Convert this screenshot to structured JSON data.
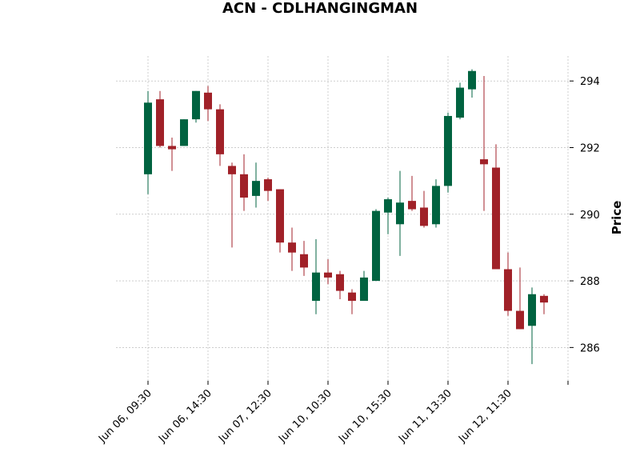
{
  "chart_data": {
    "type": "candlestick",
    "title": "ACN - CDLHANGINGMAN",
    "xlabel": "",
    "ylabel": "Price",
    "ylim": [
      285.0,
      294.75
    ],
    "yticks": [
      286,
      288,
      290,
      292,
      294
    ],
    "grid": true,
    "colors": {
      "up": "#006340",
      "down": "#a02128",
      "grid": "#b0b0b0"
    },
    "xtick_labels": [
      {
        "index": 0,
        "label": "Jun 06, 09:30"
      },
      {
        "index": 5,
        "label": "Jun 06, 14:30"
      },
      {
        "index": 10,
        "label": "Jun 07, 12:30"
      },
      {
        "index": 15,
        "label": "Jun 10, 10:30"
      },
      {
        "index": 20,
        "label": "Jun 10, 15:30"
      },
      {
        "index": 25,
        "label": "Jun 11, 13:30"
      },
      {
        "index": 30,
        "label": "Jun 12, 11:30"
      },
      {
        "index": 35,
        "label": ""
      }
    ],
    "candles": [
      {
        "o": 291.2,
        "h": 293.7,
        "l": 290.6,
        "c": 293.35
      },
      {
        "o": 293.45,
        "h": 293.7,
        "l": 292.0,
        "c": 292.05
      },
      {
        "o": 292.05,
        "h": 292.3,
        "l": 291.3,
        "c": 291.95
      },
      {
        "o": 292.05,
        "h": 292.85,
        "l": 292.05,
        "c": 292.85
      },
      {
        "o": 292.85,
        "h": 293.7,
        "l": 292.75,
        "c": 293.7
      },
      {
        "o": 293.65,
        "h": 293.85,
        "l": 292.8,
        "c": 293.15
      },
      {
        "o": 293.15,
        "h": 293.3,
        "l": 291.45,
        "c": 291.8
      },
      {
        "o": 291.45,
        "h": 291.55,
        "l": 289.0,
        "c": 291.2
      },
      {
        "o": 291.2,
        "h": 291.8,
        "l": 290.1,
        "c": 290.5
      },
      {
        "o": 290.55,
        "h": 291.55,
        "l": 290.2,
        "c": 291.0
      },
      {
        "o": 291.05,
        "h": 291.1,
        "l": 290.4,
        "c": 290.7
      },
      {
        "o": 290.75,
        "h": 290.75,
        "l": 288.85,
        "c": 289.15
      },
      {
        "o": 289.15,
        "h": 289.6,
        "l": 288.3,
        "c": 288.85
      },
      {
        "o": 288.8,
        "h": 289.2,
        "l": 288.15,
        "c": 288.4
      },
      {
        "o": 287.4,
        "h": 289.25,
        "l": 287.0,
        "c": 288.25
      },
      {
        "o": 288.25,
        "h": 288.65,
        "l": 287.9,
        "c": 288.1
      },
      {
        "o": 288.2,
        "h": 288.3,
        "l": 287.45,
        "c": 287.7
      },
      {
        "o": 287.65,
        "h": 287.75,
        "l": 287.0,
        "c": 287.4
      },
      {
        "o": 287.4,
        "h": 288.3,
        "l": 287.4,
        "c": 288.1
      },
      {
        "o": 288.0,
        "h": 290.15,
        "l": 288.0,
        "c": 290.1
      },
      {
        "o": 290.05,
        "h": 290.5,
        "l": 289.4,
        "c": 290.45
      },
      {
        "o": 289.7,
        "h": 291.3,
        "l": 288.75,
        "c": 290.35
      },
      {
        "o": 290.4,
        "h": 291.15,
        "l": 290.1,
        "c": 290.15
      },
      {
        "o": 290.2,
        "h": 290.7,
        "l": 289.6,
        "c": 289.65
      },
      {
        "o": 289.7,
        "h": 291.05,
        "l": 289.6,
        "c": 290.85
      },
      {
        "o": 290.85,
        "h": 293.05,
        "l": 290.65,
        "c": 292.95
      },
      {
        "o": 292.9,
        "h": 293.95,
        "l": 292.85,
        "c": 293.8
      },
      {
        "o": 293.75,
        "h": 294.35,
        "l": 293.5,
        "c": 294.3
      },
      {
        "o": 291.65,
        "h": 294.15,
        "l": 290.1,
        "c": 291.5
      },
      {
        "o": 291.4,
        "h": 292.1,
        "l": 288.35,
        "c": 288.35
      },
      {
        "o": 288.35,
        "h": 288.85,
        "l": 286.95,
        "c": 287.1
      },
      {
        "o": 287.1,
        "h": 288.4,
        "l": 286.55,
        "c": 286.55
      },
      {
        "o": 286.65,
        "h": 287.8,
        "l": 285.5,
        "c": 287.6
      },
      {
        "o": 287.55,
        "h": 287.6,
        "l": 287.0,
        "c": 287.35
      }
    ]
  }
}
